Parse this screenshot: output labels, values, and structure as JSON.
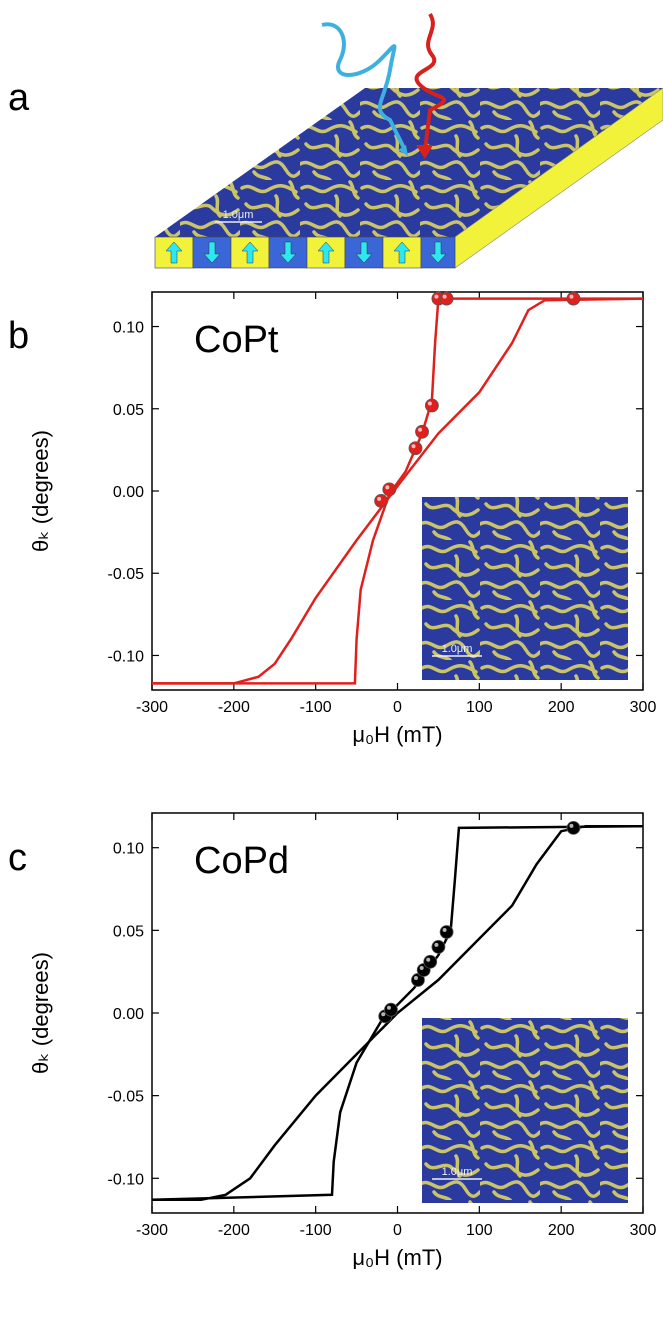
{
  "panel_labels": [
    "a",
    "b",
    "c"
  ],
  "scale_bar": "1.0μm",
  "chart_data": [
    {
      "type": "line",
      "annotation": "CoPt",
      "xlabel": "μ₀H (mT)",
      "ylabel": "θₖ (degrees)",
      "xlim": [
        -300,
        300
      ],
      "xticks": [
        -300,
        -200,
        -100,
        0,
        100,
        200,
        300
      ],
      "ylim": [
        -0.121,
        0.121
      ],
      "yticks": [
        {
          "value": 0.1,
          "label": "0.10"
        },
        0.05,
        {
          "value": 0,
          "label": "0.00"
        },
        -0.05,
        {
          "value": -0.1,
          "label": "-0.10"
        }
      ],
      "color": "#e0201c",
      "series": [
        {
          "x": [
            300,
            180,
            160,
            140,
            100,
            50,
            0,
            -50,
            -100,
            -130,
            -150,
            -170,
            -200,
            -300
          ],
          "values": [
            0.117,
            0.116,
            0.11,
            0.09,
            0.06,
            0.035,
            0.003,
            -0.03,
            -0.065,
            -0.09,
            -0.105,
            -0.113,
            -0.117,
            -0.117
          ]
        },
        {
          "x": [
            -300,
            -52,
            -50,
            -45,
            -30,
            -10,
            10,
            30,
            42,
            46,
            50,
            300
          ],
          "values": [
            -0.117,
            -0.117,
            -0.09,
            -0.06,
            -0.03,
            -0.002,
            0.012,
            0.035,
            0.055,
            0.09,
            0.117,
            0.117
          ]
        }
      ],
      "points": {
        "x": [
          -20,
          -10,
          22,
          30,
          42,
          50,
          60,
          215
        ],
        "values": [
          -0.006,
          0.001,
          0.026,
          0.036,
          0.052,
          0.117,
          0.117,
          0.117
        ]
      }
    },
    {
      "type": "line",
      "annotation": "CoPd",
      "xlabel": "μ₀H (mT)",
      "ylabel": "θₖ (degrees)",
      "xlim": [
        -300,
        300
      ],
      "xticks": [
        -300,
        -200,
        -100,
        0,
        100,
        200,
        300
      ],
      "ylim": [
        -0.121,
        0.121
      ],
      "yticks": [
        {
          "value": 0.1,
          "label": "0.10"
        },
        0.05,
        {
          "value": 0,
          "label": "0.00"
        },
        -0.05,
        {
          "value": -0.1,
          "label": "-0.10"
        }
      ],
      "color": "#000000",
      "series": [
        {
          "x": [
            300,
            230,
            200,
            170,
            140,
            100,
            50,
            0,
            -50,
            -100,
            -150,
            -180,
            -210,
            -240,
            -300
          ],
          "values": [
            0.113,
            0.113,
            0.11,
            0.09,
            0.065,
            0.045,
            0.02,
            0.0,
            -0.025,
            -0.05,
            -0.08,
            -0.1,
            -0.11,
            -0.113,
            -0.113
          ]
        },
        {
          "x": [
            -300,
            -80,
            -78,
            -70,
            -50,
            -20,
            20,
            50,
            65,
            70,
            75,
            300
          ],
          "values": [
            -0.113,
            -0.11,
            -0.09,
            -0.06,
            -0.03,
            -0.005,
            0.015,
            0.035,
            0.05,
            0.08,
            0.112,
            0.113
          ]
        }
      ],
      "points": {
        "x": [
          -15,
          -8,
          25,
          32,
          40,
          50,
          60,
          215
        ],
        "values": [
          -0.002,
          0.002,
          0.02,
          0.026,
          0.031,
          0.04,
          0.049,
          0.112
        ]
      }
    }
  ]
}
